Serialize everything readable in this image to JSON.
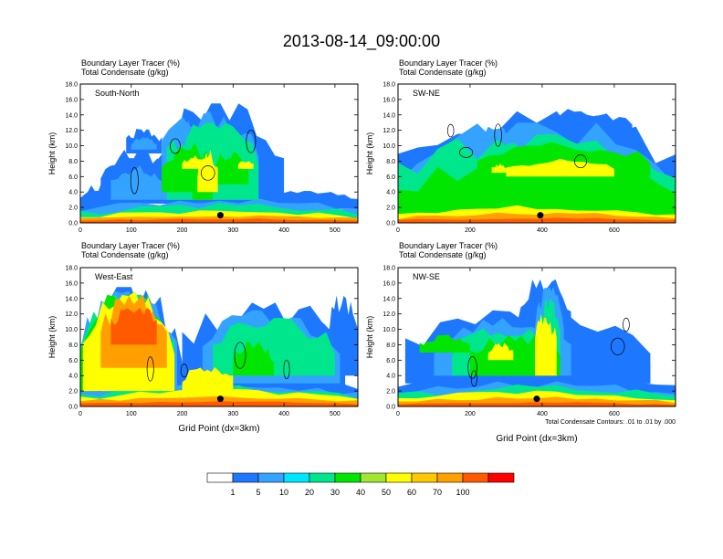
{
  "title": "2013-08-14_09:00:00",
  "chart_data": [
    {
      "type": "heatmap",
      "header_line1": "Boundary Layer Tracer    (%)",
      "header_line2": "Total Condensate   (g/kg)",
      "label": "South-North",
      "ylabel": "Height (km)",
      "xlabel": "",
      "xlim": [
        0,
        545
      ],
      "ylim": [
        0,
        18
      ],
      "xticks": [
        "0",
        "100",
        "200",
        "300",
        "400",
        "500"
      ],
      "xtick_values": [
        0,
        100,
        200,
        300,
        400,
        500
      ],
      "yticks": [
        "0.0",
        "2.0",
        "4.0",
        "6.0",
        "8.0",
        "10.0",
        "12.0",
        "14.0",
        "16.0",
        "18.0"
      ],
      "marker": {
        "x": 275,
        "y": 1.0
      },
      "seed": 11,
      "layers": [
        {
          "level": 1,
          "blobs": [
            [
              0,
              100,
              0,
              5
            ],
            [
              40,
              170,
              2.5,
              9
            ],
            [
              150,
              400,
              2.5,
              15
            ],
            [
              250,
              400,
              1,
              6
            ],
            [
              360,
              545,
              1.8,
              4
            ],
            [
              90,
              160,
              9,
              12
            ]
          ]
        },
        {
          "level": 2,
          "blobs": [
            [
              0,
              545,
              0,
              3
            ],
            [
              60,
              160,
              3,
              7
            ],
            [
              160,
              350,
              3,
              14
            ],
            [
              180,
              230,
              6,
              13
            ],
            [
              100,
              150,
              9.5,
              11
            ]
          ]
        },
        {
          "level": 4,
          "blobs": [
            [
              0,
              545,
              0,
              2.3
            ],
            [
              170,
              350,
              3,
              12.5
            ],
            [
              190,
              230,
              4,
              11
            ]
          ]
        },
        {
          "level": 5,
          "blobs": [
            [
              160,
              260,
              4,
              10
            ],
            [
              260,
              330,
              5,
              9
            ],
            [
              220,
              260,
              3,
              7
            ]
          ]
        },
        {
          "level": 7,
          "blobs": [
            [
              0,
              545,
              0,
              1.5
            ],
            [
              230,
              270,
              4,
              9
            ],
            [
              200,
              260,
              7,
              8.5
            ],
            [
              310,
              340,
              7,
              8
            ]
          ]
        },
        {
          "level": 9,
          "blobs": [
            [
              0,
              545,
              0,
              0.9
            ]
          ]
        },
        {
          "level": 10,
          "blobs": [
            [
              0,
              545,
              0,
              0.5
            ]
          ]
        }
      ]
    },
    {
      "type": "heatmap",
      "header_line1": "Boundary Layer Tracer    (%)",
      "header_line2": "Total Condensate   (g/kg)",
      "label": "SW-NE",
      "ylabel": "Height (km)",
      "xlabel": "",
      "xlim": [
        0,
        770
      ],
      "ylim": [
        0,
        18
      ],
      "xticks": [
        "0",
        "200",
        "400",
        "600"
      ],
      "xtick_values": [
        0,
        200,
        400,
        600
      ],
      "yticks": [
        "0.0",
        "2.0",
        "4.0",
        "6.0",
        "8.0",
        "10.0",
        "12.0",
        "14.0",
        "16.0",
        "18.0"
      ],
      "marker": {
        "x": 395,
        "y": 1.0
      },
      "seed": 23,
      "layers": [
        {
          "level": 1,
          "blobs": [
            [
              0,
              770,
              0,
              14
            ],
            [
              400,
              650,
              10,
              14.5
            ]
          ]
        },
        {
          "level": 2,
          "blobs": [
            [
              0,
              770,
              0,
              12.5
            ],
            [
              150,
              350,
              6,
              12
            ]
          ]
        },
        {
          "level": 4,
          "blobs": [
            [
              0,
              770,
              0,
              11
            ],
            [
              200,
              450,
              5,
              10
            ]
          ]
        },
        {
          "level": 5,
          "blobs": [
            [
              0,
              770,
              0,
              8
            ],
            [
              220,
              700,
              6,
              10
            ]
          ]
        },
        {
          "level": 7,
          "blobs": [
            [
              0,
              770,
              0,
              2
            ],
            [
              300,
              600,
              6,
              8
            ],
            [
              260,
              300,
              6.5,
              7.5
            ]
          ]
        },
        {
          "level": 9,
          "blobs": [
            [
              0,
              770,
              0,
              1.2
            ]
          ]
        },
        {
          "level": 10,
          "blobs": [
            [
              0,
              770,
              0,
              0.6
            ]
          ]
        }
      ]
    },
    {
      "type": "heatmap",
      "header_line1": "Boundary Layer Tracer    (%)",
      "header_line2": "Total Condensate   (g/kg)",
      "label": "West-East",
      "ylabel": "Height (km)",
      "xlabel": "Grid Point (dx=3km)",
      "xlim": [
        0,
        545
      ],
      "ylim": [
        0,
        18
      ],
      "xticks": [
        "0",
        "100",
        "200",
        "300",
        "400",
        "500"
      ],
      "xtick_values": [
        0,
        100,
        200,
        300,
        400,
        500
      ],
      "yticks": [
        "0.0",
        "2.0",
        "4.0",
        "6.0",
        "8.0",
        "10.0",
        "12.0",
        "14.0",
        "16.0",
        "18.0"
      ],
      "marker": {
        "x": 275,
        "y": 1.0
      },
      "seed": 37,
      "layers": [
        {
          "level": 1,
          "blobs": [
            [
              0,
              545,
              0,
              4
            ],
            [
              0,
              200,
              0,
              15
            ],
            [
              200,
              520,
              2,
              13
            ],
            [
              480,
              545,
              4,
              14
            ]
          ]
        },
        {
          "level": 2,
          "blobs": [
            [
              0,
              545,
              0,
              3
            ],
            [
              0,
              190,
              2,
              14.5
            ],
            [
              240,
              510,
              3,
              12
            ]
          ]
        },
        {
          "level": 4,
          "blobs": [
            [
              0,
              545,
              0,
              2.5
            ],
            [
              0,
              185,
              2,
              14
            ],
            [
              260,
              500,
              4,
              11
            ]
          ]
        },
        {
          "level": 5,
          "blobs": [
            [
              0,
              185,
              2,
              14
            ],
            [
              300,
              380,
              4,
              8
            ]
          ]
        },
        {
          "level": 7,
          "blobs": [
            [
              0,
              545,
              0,
              2
            ],
            [
              5,
              185,
              2,
              14.5
            ],
            [
              200,
              300,
              2,
              5
            ]
          ]
        },
        {
          "level": 9,
          "blobs": [
            [
              0,
              545,
              0,
              1.2
            ],
            [
              40,
              170,
              5,
              14
            ]
          ]
        },
        {
          "level": 10,
          "blobs": [
            [
              0,
              545,
              0,
              0.6
            ],
            [
              60,
              150,
              8,
              13
            ]
          ]
        }
      ]
    },
    {
      "type": "heatmap",
      "header_line1": "Boundary Layer Tracer    (%)",
      "header_line2": "Total Condensate   (g/kg)",
      "label": "NW-SE",
      "ylabel": "Height (km)",
      "xlabel": "Grid Point (dx=3km)",
      "xlim": [
        0,
        770
      ],
      "ylim": [
        0,
        18
      ],
      "xticks": [
        "0",
        "200",
        "400",
        "600"
      ],
      "xtick_values": [
        0,
        200,
        400,
        600
      ],
      "yticks": [
        "0.0",
        "2.0",
        "4.0",
        "6.0",
        "8.0",
        "10.0",
        "12.0",
        "14.0",
        "16.0",
        "18.0"
      ],
      "marker": {
        "x": 385,
        "y": 1.0
      },
      "seed": 53,
      "layers": [
        {
          "level": 1,
          "blobs": [
            [
              0,
              770,
              0,
              4
            ],
            [
              20,
              700,
              3,
              12
            ],
            [
              330,
              480,
              4,
              16
            ],
            [
              550,
              700,
              3,
              8
            ]
          ]
        },
        {
          "level": 2,
          "blobs": [
            [
              0,
              770,
              0,
              3
            ],
            [
              100,
              480,
              4,
              11
            ],
            [
              380,
              460,
              6,
              15
            ]
          ]
        },
        {
          "level": 4,
          "blobs": [
            [
              0,
              770,
              0,
              2.5
            ],
            [
              150,
              450,
              4,
              10
            ],
            [
              390,
              450,
              5,
              14
            ]
          ]
        },
        {
          "level": 5,
          "blobs": [
            [
              200,
              450,
              4,
              9
            ],
            [
              60,
              200,
              7,
              9
            ]
          ]
        },
        {
          "level": 7,
          "blobs": [
            [
              0,
              770,
              0,
              1.8
            ],
            [
              380,
              440,
              4,
              12
            ],
            [
              250,
              320,
              6,
              8
            ]
          ]
        },
        {
          "level": 9,
          "blobs": [
            [
              0,
              770,
              0,
              1.1
            ]
          ]
        },
        {
          "level": 10,
          "blobs": [
            [
              0,
              770,
              0,
              0.5
            ]
          ]
        }
      ]
    }
  ],
  "contour_note": "Total Condensate Contours: .01 to .01 by .000",
  "colorbar": {
    "colors": [
      "#ffffff",
      "#1e78ff",
      "#33a3ff",
      "#00e6ff",
      "#00e68c",
      "#00e600",
      "#a0e632",
      "#ffff00",
      "#ffc800",
      "#ffa000",
      "#ff5a00",
      "#ff0000"
    ],
    "labels": [
      "1",
      "5",
      "10",
      "20",
      "30",
      "40",
      "50",
      "60",
      "70",
      "100"
    ]
  }
}
